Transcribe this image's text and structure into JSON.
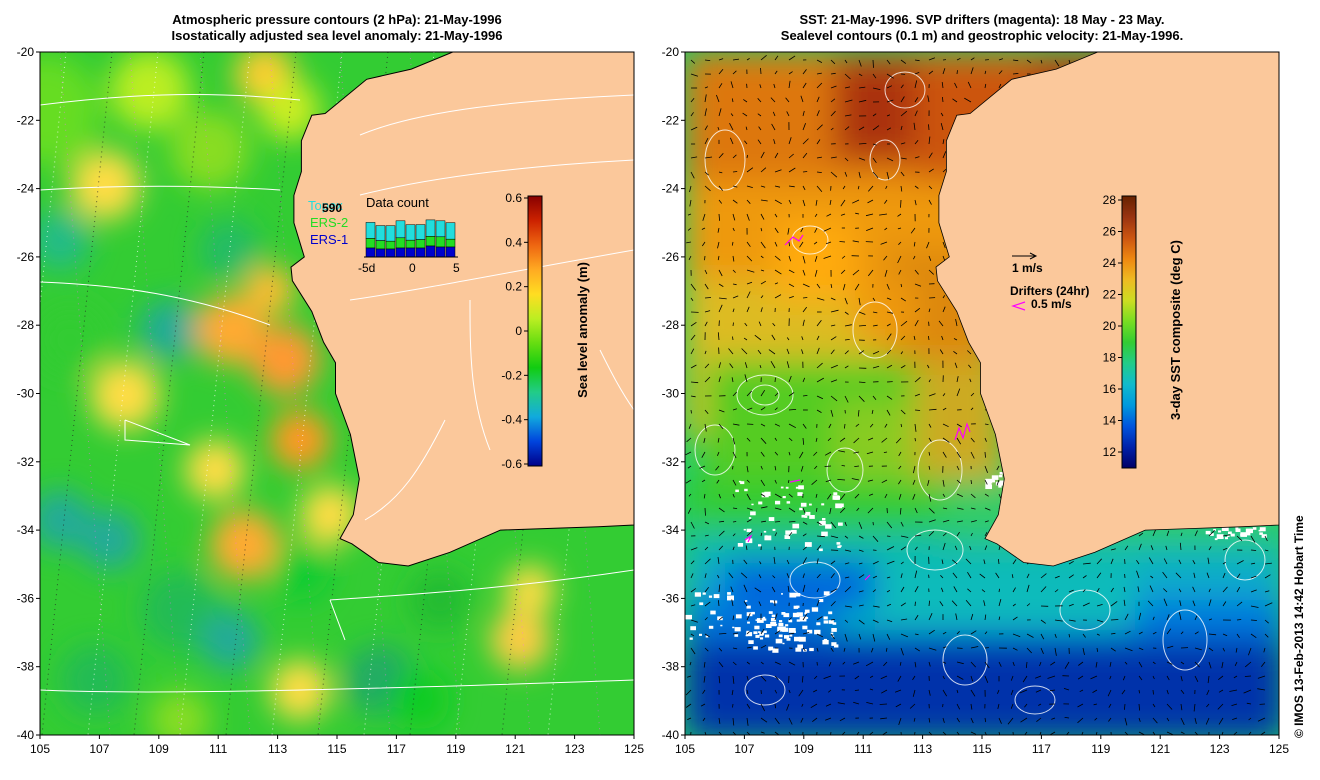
{
  "left_map": {
    "title_line1": "Atmospheric pressure contours (2 hPa): 21-May-1996",
    "title_line2": "Isostatically adjusted sea level anomaly: 21-May-1996",
    "x_ticks": [
      "105",
      "107",
      "109",
      "111",
      "113",
      "115",
      "117",
      "119",
      "121",
      "123",
      "125"
    ],
    "y_ticks": [
      "-20",
      "-22",
      "-24",
      "-26",
      "-28",
      "-30",
      "-32",
      "-34",
      "-36",
      "-38",
      "-40"
    ],
    "colorbar_label": "Sea level anomaly (m)",
    "colorbar_ticks": [
      "0.6",
      "0.4",
      "0.2",
      "0",
      "-0.2",
      "-0.4",
      "-0.6"
    ],
    "legend": {
      "topex_label": "Topex",
      "ers2_label": "ERS-2",
      "ers1_label": "ERS-1",
      "count_value": "590",
      "title": "Data count",
      "axis_ticks": [
        "-5d",
        "0",
        "5"
      ],
      "topex_color": "#22dddd",
      "ers2_color": "#22dd22",
      "ers1_color": "#0000cc"
    }
  },
  "right_map": {
    "title_line1": "SST: 21-May-1996. SVP drifters (magenta): 18 May - 23 May.",
    "title_line2": "Sealevel contours (0.1 m) and geostrophic velocity: 21-May-1996.",
    "x_ticks": [
      "105",
      "107",
      "109",
      "111",
      "113",
      "115",
      "117",
      "119",
      "121",
      "123",
      "125"
    ],
    "y_ticks": [
      "-20",
      "-22",
      "-24",
      "-26",
      "-28",
      "-30",
      "-32",
      "-34",
      "-36",
      "-38",
      "-40"
    ],
    "colorbar_label": "3-day SST composite (deg C)",
    "colorbar_ticks": [
      "28",
      "26",
      "24",
      "22",
      "20",
      "18",
      "16",
      "14",
      "12"
    ],
    "velocity_scale_label": "1 m/s",
    "drifters_label": "Drifters (24hr)",
    "drifter_scale_label": "0.5 m/s",
    "drifter_color": "#ff00ff"
  },
  "credit": "© IMOS 13-Feb-2013 14:42 Hobart Time",
  "colors": {
    "land": "#fbc89b",
    "ssh_cmap": [
      "#000088",
      "#0044dd",
      "#11aadd",
      "#22cc88",
      "#11cc11",
      "#66dd11",
      "#bbee22",
      "#ffdd22",
      "#ffaa22",
      "#ee6611",
      "#cc2200",
      "#880000"
    ],
    "sst_cmap": [
      "#000066",
      "#0022aa",
      "#0055dd",
      "#0099dd",
      "#11bbcc",
      "#22cc88",
      "#33cc33",
      "#77dd22",
      "#ccdd22",
      "#eebb22",
      "#ee8811",
      "#cc5511",
      "#993311",
      "#662200"
    ]
  }
}
